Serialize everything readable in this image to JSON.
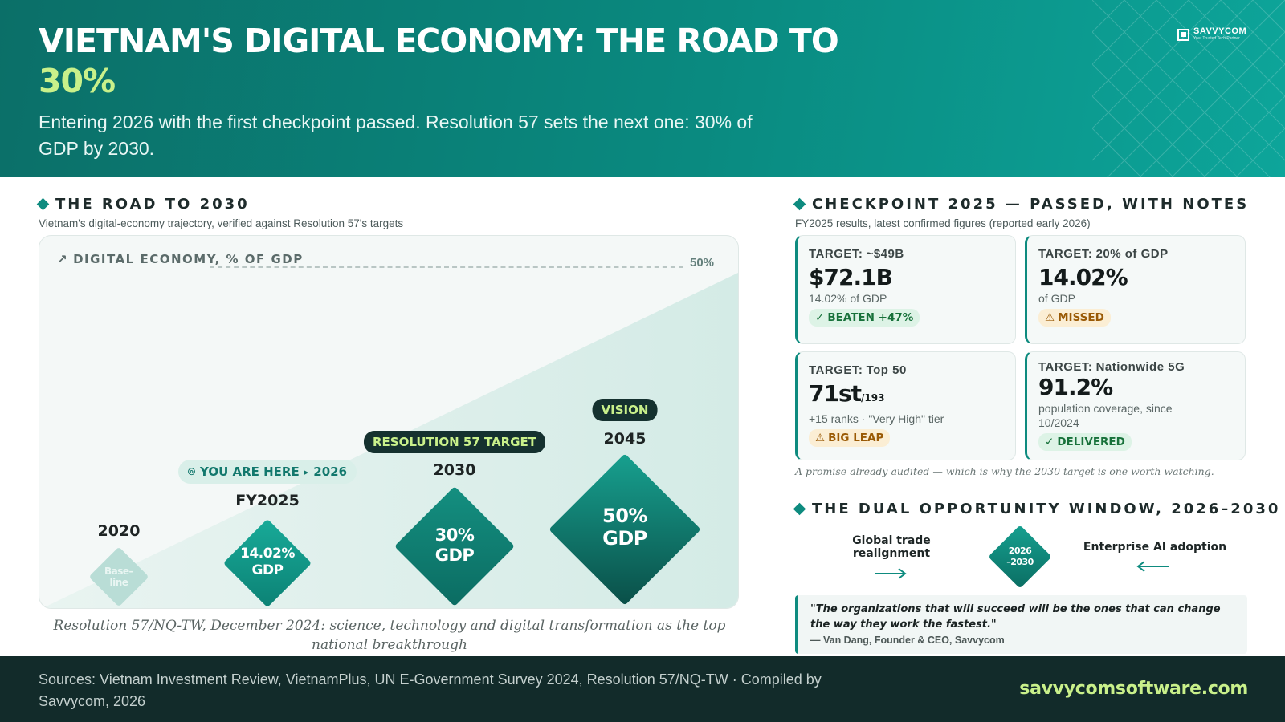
{
  "header": {
    "title_line1": "VIETNAM'S DIGITAL ECONOMY: THE ROAD TO",
    "title_accent": "30%",
    "subtitle": "Entering 2026 with the first checkpoint passed. Resolution 57 sets the next one: 30% of GDP by 2030.",
    "logo_name": "SAVVYCOM",
    "logo_tagline": "Your Trusted Tech Partner"
  },
  "left": {
    "heading": "THE ROAD TO 2030",
    "subheading": "Vietnam's digital-economy trajectory, verified against Resolution 57's targets",
    "chart_label": "DIGITAL ECONOMY, % OF GDP",
    "ref_label": "50%",
    "caption": "Resolution 57/NQ-TW, December 2024: science, technology and digital transformation as the top national breakthrough"
  },
  "chart_data": {
    "type": "area",
    "title": "DIGITAL ECONOMY, % OF GDP",
    "reference_line": 50,
    "milestones": [
      {
        "year": "2020",
        "diamond_text": "Base-line",
        "value": null
      },
      {
        "year": "FY2025",
        "diamond_text": "14.02% GDP",
        "value": 14.02,
        "tag": "YOU ARE HERE ‣ 2026"
      },
      {
        "year": "2030",
        "diamond_text": "30% GDP",
        "value": 30,
        "tag": "RESOLUTION 57 TARGET"
      },
      {
        "year": "2045",
        "diamond_text": "50% GDP",
        "value": 50,
        "tag": "VISION"
      }
    ]
  },
  "milestones": {
    "m2020": {
      "year": "2020",
      "text": "Base–line"
    },
    "m2025": {
      "year": "FY2025",
      "line1": "14.02%",
      "line2": "GDP",
      "tag": "YOU ARE HERE",
      "tag_year": "2026"
    },
    "m2030": {
      "year": "2030",
      "line1": "30%",
      "line2": "GDP",
      "tag": "RESOLUTION 57 TARGET"
    },
    "m2045": {
      "year": "2045",
      "line1": "50%",
      "line2": "GDP",
      "tag": "VISION"
    }
  },
  "right": {
    "heading": "CHECKPOINT 2025 — PASSED, WITH NOTES",
    "subheading": "FY2025 results, latest confirmed figures (reported early 2026)",
    "cards": [
      {
        "target_label": "TARGET:",
        "target": "~$49B",
        "value": "$72.1B",
        "value_suffix": "",
        "note": "14.02% of GDP",
        "badge": "BEATEN +47%"
      },
      {
        "target_label": "TARGET:",
        "target": "20% of GDP",
        "value": "14.02%",
        "value_suffix": "",
        "note": "of GDP",
        "badge": "MISSED"
      },
      {
        "target_label": "TARGET:",
        "target": "Top 50",
        "value": "71st",
        "value_suffix": "/193",
        "note": "+15 ranks · \"Very High\" tier",
        "badge": "BIG LEAP"
      },
      {
        "target_label": "TARGET:",
        "target": "Nationwide 5G",
        "value": "91.2%",
        "value_suffix": "",
        "note": "population coverage, since 10/2024",
        "badge": "DELIVERED"
      }
    ],
    "audit_note": "A promise already audited — which is why the 2030 target is one worth watching.",
    "dual_heading": "THE DUAL OPPORTUNITY WINDOW, 2026–2030",
    "dual_left": "Global trade realignment",
    "dual_center_1": "2026",
    "dual_center_2": "–2030",
    "dual_right": "Enterprise AI adoption",
    "quote": "\"The organizations that will succeed will be the ones that can change the way they work the fastest.\"",
    "quote_author": "— Van Dang, Founder & CEO, Savvycom"
  },
  "footer": {
    "sources": "Sources: Vietnam Investment Review, VietnamPlus, UN E-Government Survey 2024, Resolution 57/NQ-TW · Compiled by Savvycom, 2026",
    "site": "savvycomsoftware.com"
  },
  "colors": {
    "primary": "#0e8b7f",
    "accent_lime": "#c9f08a",
    "dark": "#122b2a",
    "badge_green": "#17713a",
    "badge_amber": "#9a5a05"
  }
}
